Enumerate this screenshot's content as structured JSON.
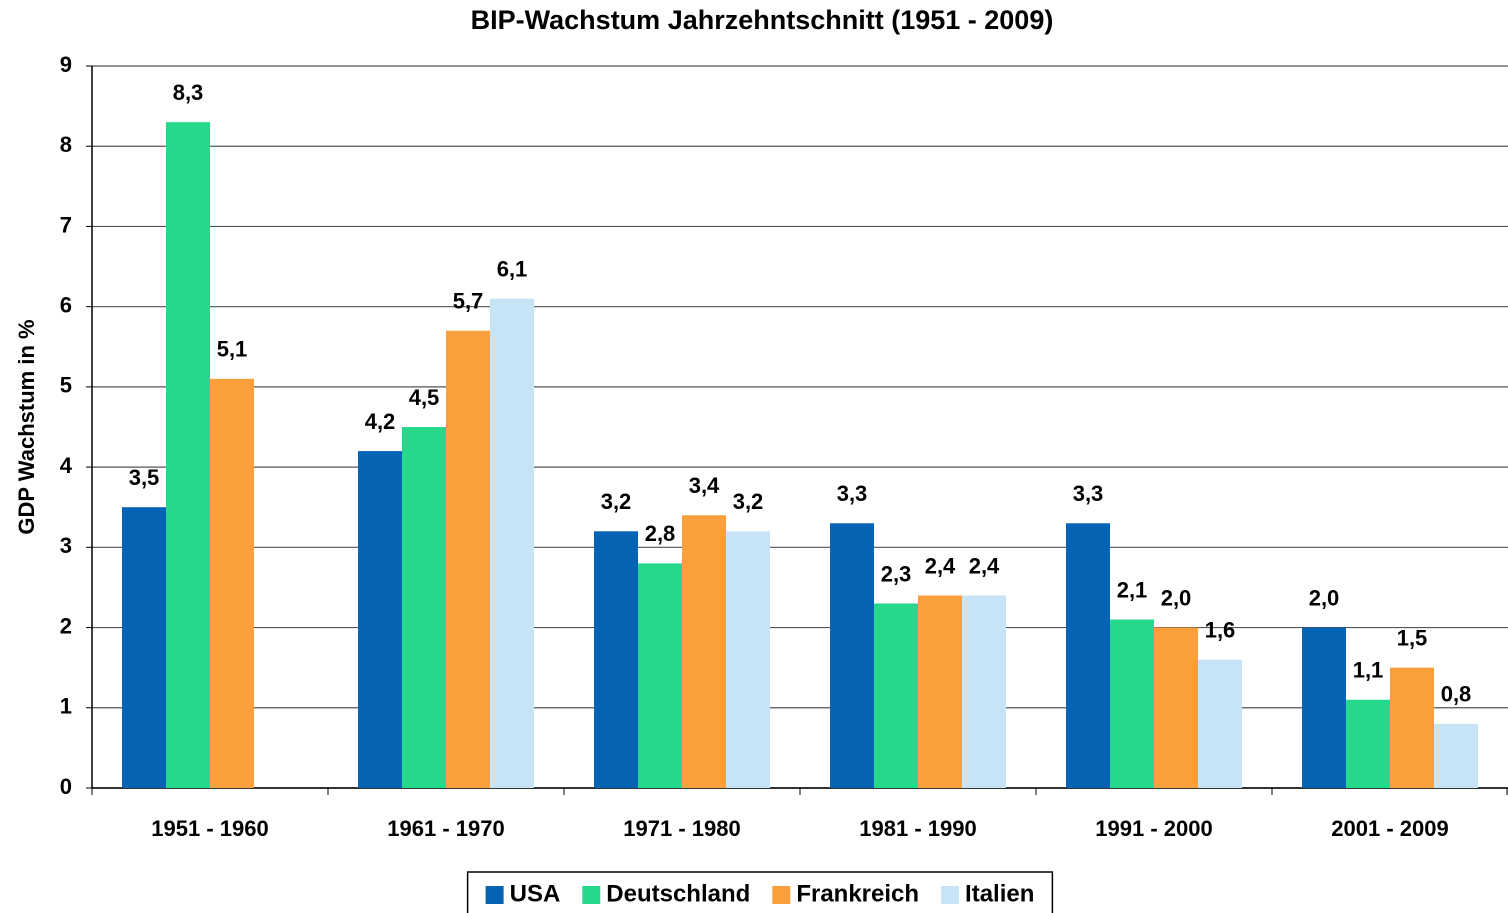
{
  "chart_data": {
    "type": "bar",
    "title": "BIP-Wachstum Jahrzehntschnitt (1951 - 2009)",
    "y_label": "GDP Wachstum in %",
    "categories": [
      "1951 - 1960",
      "1961 - 1970",
      "1971 - 1980",
      "1981 - 1990",
      "1991 - 2000",
      "2001 - 2009"
    ],
    "series": [
      {
        "name": "USA",
        "color": "#0563b4",
        "values": [
          3.5,
          4.2,
          3.2,
          3.3,
          3.3,
          2.0
        ],
        "value_labels": [
          "3,5",
          "4,2",
          "3,2",
          "3,3",
          "3,3",
          "2,0"
        ]
      },
      {
        "name": "Deutschland",
        "color": "#26d98a",
        "values": [
          8.3,
          4.5,
          2.8,
          2.3,
          2.1,
          1.1
        ],
        "value_labels": [
          "8,3",
          "4,5",
          "2,8",
          "2,3",
          "2,1",
          "1,1"
        ]
      },
      {
        "name": "Frankreich",
        "color": "#f9a03c",
        "values": [
          5.1,
          5.7,
          3.4,
          2.4,
          2.0,
          1.5
        ],
        "value_labels": [
          "5,1",
          "5,7",
          "3,4",
          "2,4",
          "2,0",
          "1,5"
        ]
      },
      {
        "name": "Italien",
        "color": "#c6e4f5",
        "values": [
          null,
          6.1,
          3.2,
          2.4,
          1.6,
          0.8
        ],
        "value_labels": [
          null,
          "6,1",
          "3,2",
          "2,4",
          "1,6",
          "0,8"
        ]
      }
    ],
    "ylim": [
      0,
      9
    ],
    "yticks": [
      0,
      1,
      2,
      3,
      4,
      5,
      6,
      7,
      8,
      9
    ],
    "grid": true,
    "legend": "bottom"
  }
}
